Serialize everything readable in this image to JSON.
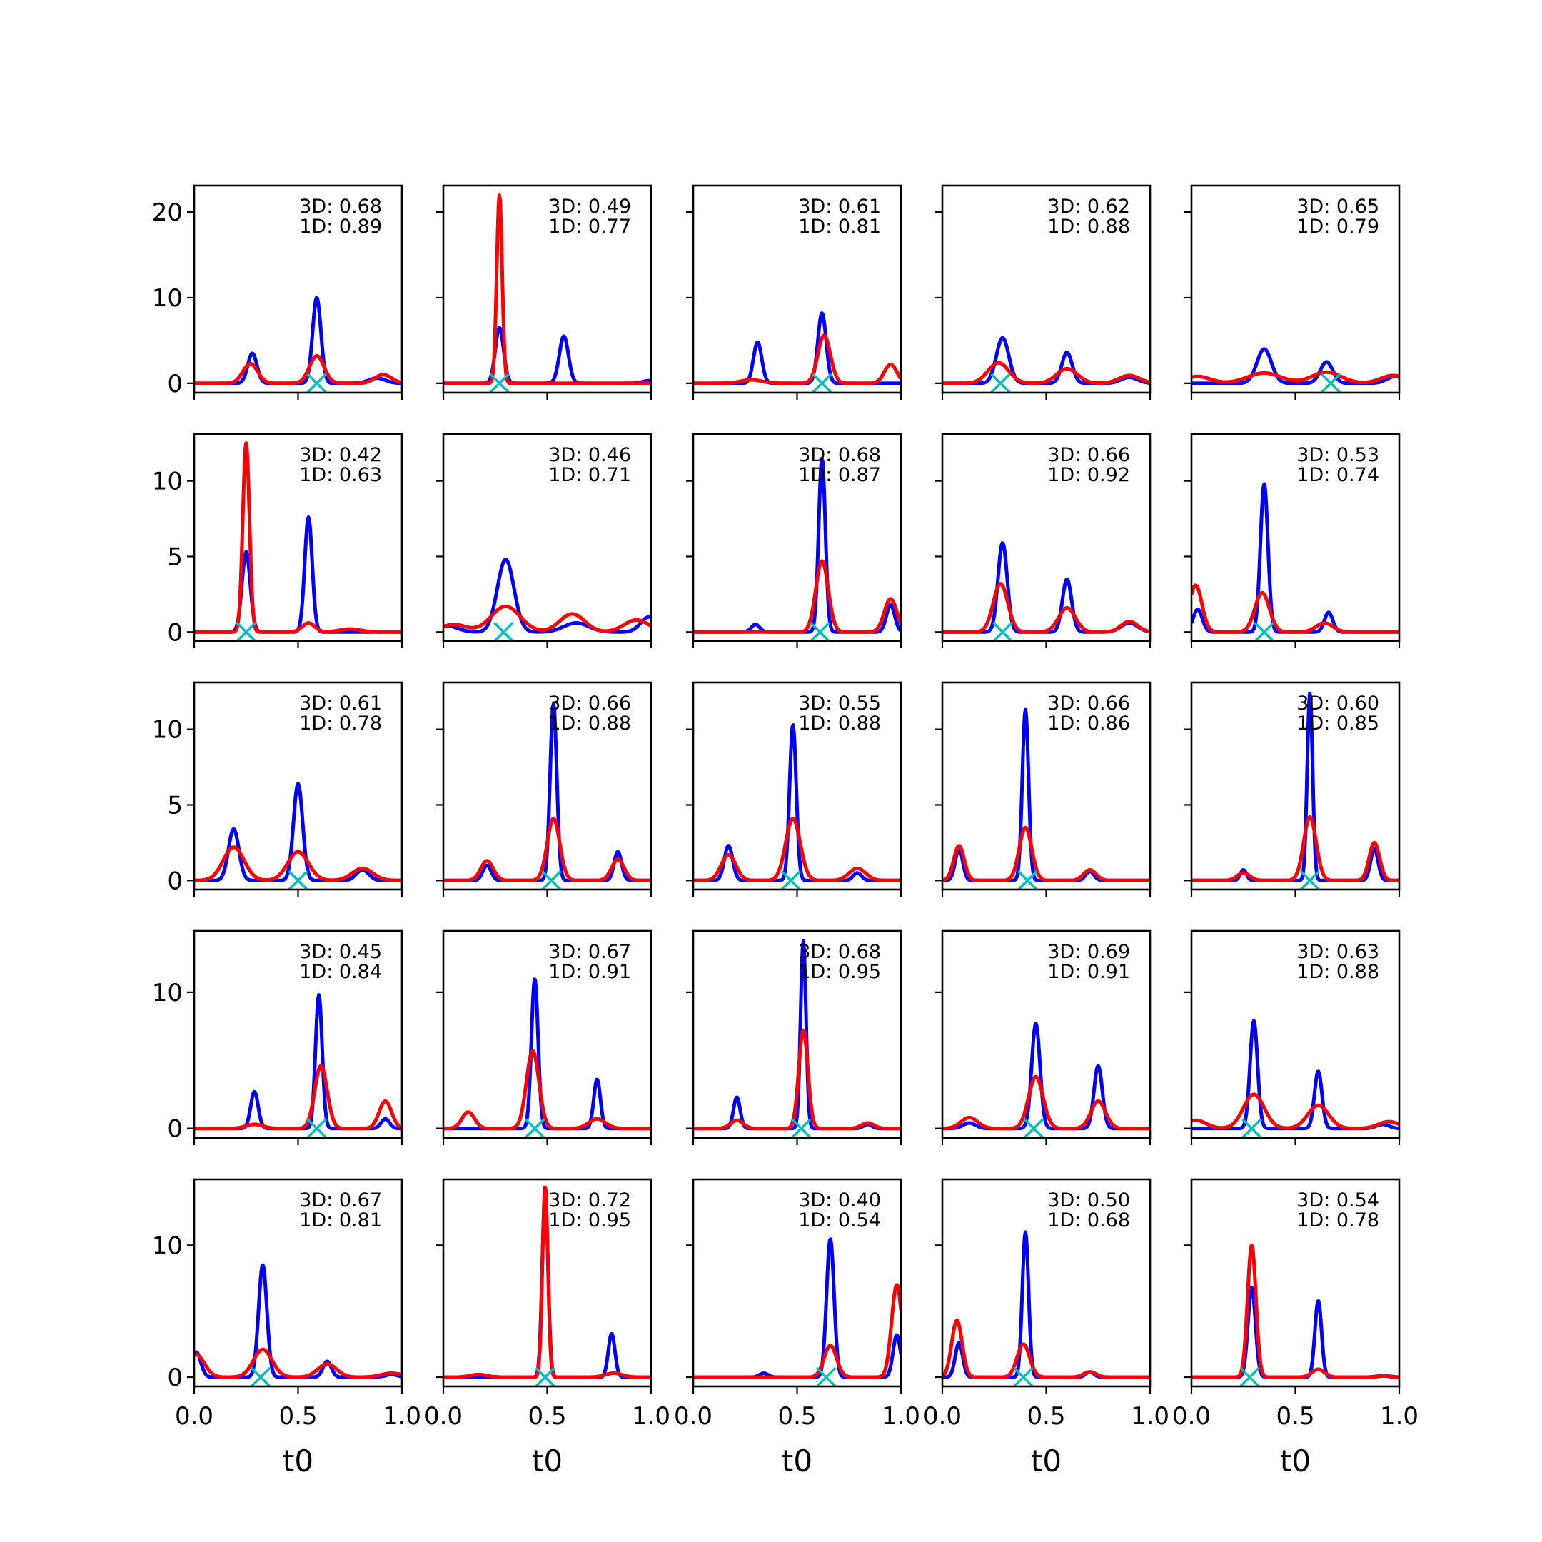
{
  "chart_data": {
    "type": "line",
    "layout": "5x5 small multiples",
    "shared_x_axis": true,
    "shared_y_axis_per_row": true,
    "xlabel": "t0",
    "xlim": [
      0,
      1
    ],
    "xticks": [
      "0.0",
      "0.5",
      "1.0"
    ],
    "series_colors": [
      "#0000ff",
      "#ff0000"
    ],
    "marker_color": "#00bfbf",
    "marker_symbol": "x",
    "rows": [
      {
        "ylim": [
          -1.1,
          23.1
        ],
        "yticks": [
          0,
          10,
          20
        ]
      },
      {
        "ylim": [
          -0.6,
          13.1
        ],
        "yticks": [
          0,
          5,
          10
        ]
      },
      {
        "ylim": [
          -0.6,
          13.1
        ],
        "yticks": [
          0,
          5,
          10
        ]
      },
      {
        "ylim": [
          -0.7,
          14.5
        ],
        "yticks": [
          0,
          10
        ]
      },
      {
        "ylim": [
          -0.7,
          15.0
        ],
        "yticks": [
          0,
          10
        ]
      }
    ],
    "panels": [
      {
        "ann_3d": "3D: 0.68",
        "ann_1d": "1D: 0.89",
        "marker_x": 0.59,
        "blue": [
          [
            0.28,
            3.5,
            0.022
          ],
          [
            0.59,
            10.0,
            0.02
          ],
          [
            0.88,
            0.6,
            0.04
          ]
        ],
        "red": [
          [
            0.27,
            2.3,
            0.035
          ],
          [
            0.59,
            3.2,
            0.035
          ],
          [
            0.91,
            1.0,
            0.04
          ]
        ]
      },
      {
        "ann_3d": "3D: 0.49",
        "ann_1d": "1D: 0.77",
        "marker_x": 0.27,
        "blue": [
          [
            0.27,
            6.5,
            0.02
          ],
          [
            0.58,
            5.5,
            0.022
          ],
          [
            0.99,
            0.3,
            0.03
          ]
        ],
        "red": [
          [
            0.27,
            22.0,
            0.013
          ]
        ]
      },
      {
        "ann_3d": "3D: 0.61",
        "ann_1d": "1D: 0.81",
        "marker_x": 0.62,
        "blue": [
          [
            0.31,
            4.8,
            0.02
          ],
          [
            0.62,
            8.2,
            0.02
          ]
        ],
        "red": [
          [
            0.28,
            0.4,
            0.05
          ],
          [
            0.63,
            5.6,
            0.03
          ],
          [
            0.95,
            2.2,
            0.03
          ]
        ]
      },
      {
        "ann_3d": "3D: 0.62",
        "ann_1d": "1D: 0.88",
        "marker_x": 0.28,
        "blue": [
          [
            0.29,
            5.3,
            0.03
          ],
          [
            0.6,
            3.6,
            0.025
          ],
          [
            0.9,
            0.7,
            0.04
          ]
        ],
        "red": [
          [
            0.27,
            2.4,
            0.05
          ],
          [
            0.6,
            1.7,
            0.05
          ],
          [
            0.9,
            0.9,
            0.05
          ]
        ]
      },
      {
        "ann_3d": "3D: 0.65",
        "ann_1d": "1D: 0.79",
        "marker_x": 0.67,
        "blue": [
          [
            0.35,
            4.0,
            0.035
          ],
          [
            0.65,
            2.5,
            0.03
          ],
          [
            0.98,
            0.8,
            0.04
          ]
        ],
        "red": [
          [
            0.03,
            0.8,
            0.06
          ],
          [
            0.35,
            1.2,
            0.08
          ],
          [
            0.65,
            1.3,
            0.07
          ],
          [
            0.97,
            0.9,
            0.06
          ]
        ]
      },
      {
        "ann_3d": "3D: 0.42",
        "ann_1d": "1D: 0.63",
        "marker_x": 0.25,
        "blue": [
          [
            0.25,
            5.3,
            0.02
          ],
          [
            0.55,
            7.6,
            0.018
          ]
        ],
        "red": [
          [
            0.25,
            12.5,
            0.016
          ],
          [
            0.55,
            0.6,
            0.03
          ],
          [
            0.75,
            0.2,
            0.05
          ]
        ]
      },
      {
        "ann_3d": "3D: 0.46",
        "ann_1d": "1D: 0.71",
        "marker_x": 0.29,
        "blue": [
          [
            0.02,
            0.4,
            0.05
          ],
          [
            0.3,
            4.8,
            0.04
          ],
          [
            0.64,
            0.6,
            0.06
          ],
          [
            0.99,
            1.0,
            0.04
          ]
        ],
        "red": [
          [
            0.05,
            0.5,
            0.06
          ],
          [
            0.3,
            1.7,
            0.07
          ],
          [
            0.62,
            1.2,
            0.06
          ],
          [
            0.93,
            0.8,
            0.06
          ]
        ]
      },
      {
        "ann_3d": "3D: 0.68",
        "ann_1d": "1D: 0.87",
        "marker_x": 0.61,
        "blue": [
          [
            0.3,
            0.5,
            0.02
          ],
          [
            0.62,
            11.5,
            0.016
          ],
          [
            0.95,
            1.8,
            0.02
          ]
        ],
        "red": [
          [
            0.62,
            4.7,
            0.03
          ],
          [
            0.95,
            2.2,
            0.03
          ]
        ]
      },
      {
        "ann_3d": "3D: 0.66",
        "ann_1d": "1D: 0.92",
        "marker_x": 0.29,
        "blue": [
          [
            0.29,
            5.9,
            0.022
          ],
          [
            0.6,
            3.5,
            0.022
          ],
          [
            0.9,
            0.6,
            0.04
          ]
        ],
        "red": [
          [
            0.28,
            3.2,
            0.035
          ],
          [
            0.6,
            1.6,
            0.04
          ],
          [
            0.9,
            0.7,
            0.04
          ]
        ]
      },
      {
        "ann_3d": "3D: 0.53",
        "ann_1d": "1D: 0.74",
        "marker_x": 0.35,
        "blue": [
          [
            0.03,
            1.5,
            0.022
          ],
          [
            0.35,
            9.8,
            0.018
          ],
          [
            0.66,
            1.3,
            0.02
          ]
        ],
        "red": [
          [
            0.02,
            3.1,
            0.03
          ],
          [
            0.34,
            2.6,
            0.035
          ],
          [
            0.64,
            0.6,
            0.04
          ]
        ]
      },
      {
        "ann_3d": "3D: 0.61",
        "ann_1d": "1D: 0.78",
        "marker_x": 0.5,
        "blue": [
          [
            0.19,
            3.4,
            0.025
          ],
          [
            0.5,
            6.4,
            0.022
          ],
          [
            0.81,
            0.7,
            0.03
          ]
        ],
        "red": [
          [
            0.19,
            2.2,
            0.05
          ],
          [
            0.5,
            1.9,
            0.05
          ],
          [
            0.81,
            0.8,
            0.05
          ]
        ]
      },
      {
        "ann_3d": "3D: 0.66",
        "ann_1d": "1D: 0.88",
        "marker_x": 0.52,
        "blue": [
          [
            0.21,
            1.0,
            0.02
          ],
          [
            0.53,
            11.7,
            0.016
          ],
          [
            0.84,
            1.9,
            0.018
          ]
        ],
        "red": [
          [
            0.21,
            1.3,
            0.03
          ],
          [
            0.53,
            4.1,
            0.03
          ],
          [
            0.84,
            1.4,
            0.03
          ]
        ]
      },
      {
        "ann_3d": "3D: 0.55",
        "ann_1d": "1D: 0.88",
        "marker_x": 0.47,
        "blue": [
          [
            0.17,
            2.3,
            0.02
          ],
          [
            0.48,
            10.3,
            0.016
          ],
          [
            0.79,
            0.5,
            0.02
          ]
        ],
        "red": [
          [
            0.17,
            1.7,
            0.035
          ],
          [
            0.48,
            4.1,
            0.035
          ],
          [
            0.79,
            0.8,
            0.04
          ]
        ]
      },
      {
        "ann_3d": "3D: 0.66",
        "ann_1d": "1D: 0.86",
        "marker_x": 0.41,
        "blue": [
          [
            0.08,
            2.1,
            0.018
          ],
          [
            0.4,
            11.3,
            0.015
          ],
          [
            0.71,
            0.6,
            0.02
          ]
        ],
        "red": [
          [
            0.08,
            2.3,
            0.025
          ],
          [
            0.4,
            3.5,
            0.03
          ],
          [
            0.71,
            0.7,
            0.03
          ]
        ]
      },
      {
        "ann_3d": "3D: 0.60",
        "ann_1d": "1D: 0.85",
        "marker_x": 0.57,
        "blue": [
          [
            0.25,
            0.7,
            0.015
          ],
          [
            0.57,
            12.4,
            0.013
          ],
          [
            0.88,
            2.1,
            0.018
          ]
        ],
        "red": [
          [
            0.25,
            0.5,
            0.03
          ],
          [
            0.57,
            4.2,
            0.03
          ],
          [
            0.88,
            2.5,
            0.025
          ]
        ]
      },
      {
        "ann_3d": "3D: 0.45",
        "ann_1d": "1D: 0.84",
        "marker_x": 0.59,
        "blue": [
          [
            0.29,
            2.7,
            0.018
          ],
          [
            0.6,
            9.8,
            0.016
          ],
          [
            0.92,
            0.7,
            0.02
          ]
        ],
        "red": [
          [
            0.29,
            0.3,
            0.04
          ],
          [
            0.61,
            4.6,
            0.03
          ],
          [
            0.92,
            2.0,
            0.03
          ]
        ]
      },
      {
        "ann_3d": "3D: 0.67",
        "ann_1d": "1D: 0.91",
        "marker_x": 0.44,
        "blue": [
          [
            0.44,
            11.0,
            0.016
          ],
          [
            0.74,
            3.6,
            0.016
          ]
        ],
        "red": [
          [
            0.12,
            1.2,
            0.03
          ],
          [
            0.43,
            5.7,
            0.03
          ],
          [
            0.74,
            0.7,
            0.04
          ]
        ]
      },
      {
        "ann_3d": "3D: 0.68",
        "ann_1d": "1D: 0.95",
        "marker_x": 0.52,
        "blue": [
          [
            0.21,
            2.3,
            0.016
          ],
          [
            0.53,
            13.8,
            0.013
          ],
          [
            0.84,
            0.3,
            0.02
          ]
        ],
        "red": [
          [
            0.21,
            0.6,
            0.03
          ],
          [
            0.53,
            7.2,
            0.022
          ],
          [
            0.84,
            0.4,
            0.03
          ]
        ]
      },
      {
        "ann_3d": "3D: 0.69",
        "ann_1d": "1D: 0.91",
        "marker_x": 0.44,
        "blue": [
          [
            0.13,
            0.4,
            0.03
          ],
          [
            0.45,
            7.7,
            0.02
          ],
          [
            0.75,
            4.6,
            0.02
          ]
        ],
        "red": [
          [
            0.13,
            0.8,
            0.04
          ],
          [
            0.45,
            3.8,
            0.035
          ],
          [
            0.75,
            2.0,
            0.035
          ]
        ]
      },
      {
        "ann_3d": "3D: 0.63",
        "ann_1d": "1D: 0.88",
        "marker_x": 0.29,
        "blue": [
          [
            0.3,
            7.9,
            0.018
          ],
          [
            0.61,
            4.2,
            0.018
          ],
          [
            0.92,
            0.3,
            0.03
          ]
        ],
        "red": [
          [
            0.02,
            0.6,
            0.05
          ],
          [
            0.3,
            2.5,
            0.05
          ],
          [
            0.61,
            1.7,
            0.05
          ],
          [
            0.95,
            0.5,
            0.05
          ]
        ]
      },
      {
        "ann_3d": "3D: 0.67",
        "ann_1d": "1D: 0.81",
        "marker_x": 0.32,
        "blue": [
          [
            0.01,
            1.9,
            0.022
          ],
          [
            0.33,
            8.5,
            0.02
          ],
          [
            0.64,
            1.2,
            0.02
          ],
          [
            0.95,
            0.2,
            0.03
          ]
        ],
        "red": [
          [
            0.01,
            1.7,
            0.04
          ],
          [
            0.33,
            2.1,
            0.045
          ],
          [
            0.64,
            1.0,
            0.045
          ],
          [
            0.95,
            0.3,
            0.05
          ]
        ]
      },
      {
        "ann_3d": "3D: 0.72",
        "ann_1d": "1D: 0.95",
        "marker_x": 0.49,
        "blue": [
          [
            0.49,
            14.0,
            0.014
          ],
          [
            0.81,
            3.3,
            0.016
          ]
        ],
        "red": [
          [
            0.49,
            14.5,
            0.013
          ],
          [
            0.17,
            0.2,
            0.04
          ],
          [
            0.82,
            0.3,
            0.04
          ]
        ]
      },
      {
        "ann_3d": "3D: 0.40",
        "ann_1d": "1D: 0.54",
        "marker_x": 0.64,
        "blue": [
          [
            0.34,
            0.3,
            0.02
          ],
          [
            0.66,
            10.5,
            0.018
          ],
          [
            0.98,
            3.2,
            0.018
          ]
        ],
        "red": [
          [
            0.66,
            2.4,
            0.03
          ],
          [
            0.98,
            7.0,
            0.025
          ]
        ]
      },
      {
        "ann_3d": "3D: 0.50",
        "ann_1d": "1D: 0.68",
        "marker_x": 0.39,
        "blue": [
          [
            0.08,
            2.6,
            0.018
          ],
          [
            0.4,
            11.0,
            0.015
          ],
          [
            0.71,
            0.4,
            0.02
          ]
        ],
        "red": [
          [
            0.07,
            4.3,
            0.025
          ],
          [
            0.39,
            2.5,
            0.03
          ],
          [
            0.71,
            0.4,
            0.03
          ]
        ]
      },
      {
        "ann_3d": "3D: 0.54",
        "ann_1d": "1D: 0.78",
        "marker_x": 0.28,
        "blue": [
          [
            0.29,
            6.8,
            0.018
          ],
          [
            0.61,
            5.8,
            0.016
          ],
          [
            0.92,
            0.1,
            0.03
          ]
        ],
        "red": [
          [
            0.29,
            10.0,
            0.02
          ],
          [
            0.61,
            0.6,
            0.03
          ],
          [
            0.93,
            0.1,
            0.03
          ]
        ]
      }
    ]
  }
}
